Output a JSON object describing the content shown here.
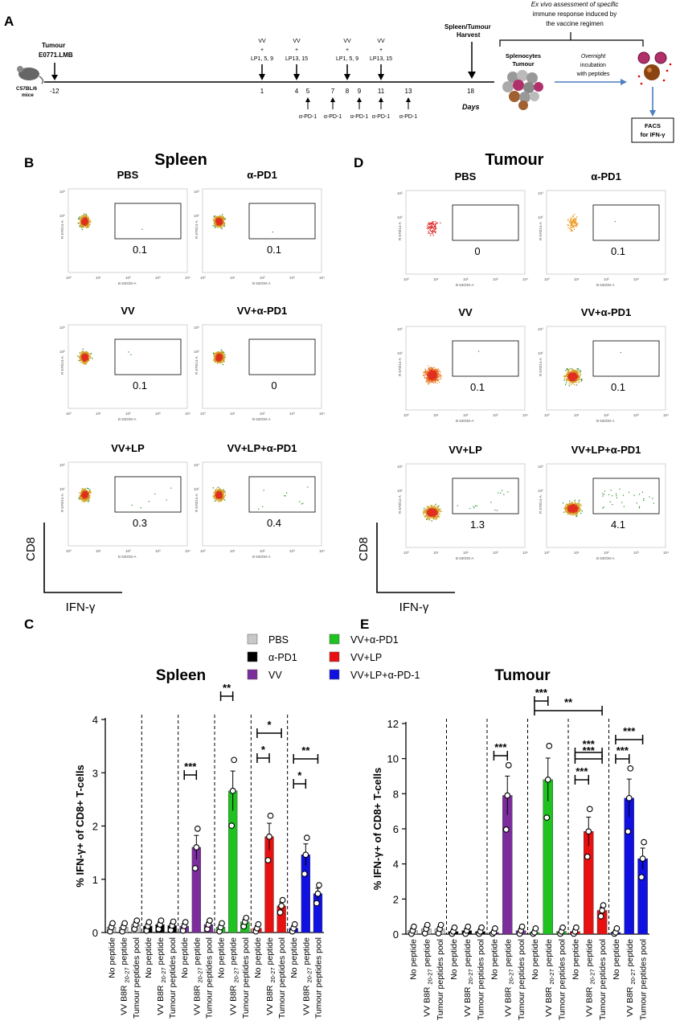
{
  "panels": {
    "A": "A",
    "B": "B",
    "C": "C",
    "D": "D",
    "E": "E"
  },
  "timeline": {
    "tumour": [
      "Tumour",
      "E0771.LMB"
    ],
    "mice": [
      "C57BL/6",
      "mice"
    ],
    "day_start": "-12",
    "vaccinations": [
      {
        "day": "1",
        "text": [
          "VV",
          "+",
          "LP1, 5, 9"
        ]
      },
      {
        "day": "4",
        "text": [
          "VV",
          "+",
          "LP13, 15"
        ]
      },
      {
        "day": "8",
        "text": [
          "VV",
          "+",
          "LP1, 5, 9"
        ]
      },
      {
        "day": "11",
        "text": [
          "VV",
          "+",
          "LP13, 15"
        ]
      }
    ],
    "pd1_days": [
      "5",
      "7",
      "9",
      "11",
      "13"
    ],
    "pd1_label": "α-PD-1",
    "harvest": [
      "Spleen/Tumour",
      "Harvest"
    ],
    "harvest_day": "18",
    "days_label": "Days",
    "cells": [
      "Splenocytes",
      "Tumour"
    ],
    "incubation": [
      "Overnight",
      "incubation",
      "with peptides"
    ],
    "exvivo": [
      "Ex vivo assessment of specific",
      "immune response induced by",
      "the vaccine regimen"
    ],
    "facs": [
      "FACS",
      "for IFN-γ"
    ]
  },
  "flow": {
    "spleen_title": "Spleen",
    "tumour_title": "Tumour",
    "y_axis_label": "CD8",
    "x_axis_label": "IFN-γ",
    "channel_x": "B 530/30-A",
    "channel_y": "R 670/14-A",
    "spleen_plots": [
      {
        "title": "PBS",
        "value": "0.1"
      },
      {
        "title": "α-PD1",
        "value": "0.1"
      },
      {
        "title": "VV",
        "value": "0.1"
      },
      {
        "title": "VV+α-PD1",
        "value": "0"
      },
      {
        "title": "VV+LP",
        "value": "0.3"
      },
      {
        "title": "VV+LP+α-PD1",
        "value": "0.4"
      }
    ],
    "tumour_plots": [
      {
        "title": "PBS",
        "value": "0"
      },
      {
        "title": "α-PD1",
        "value": "0.1"
      },
      {
        "title": "VV",
        "value": "0.1"
      },
      {
        "title": "VV+α-PD1",
        "value": "0.1"
      },
      {
        "title": "VV+LP",
        "value": "1.3"
      },
      {
        "title": "VV+LP+α-PD1",
        "value": "4.1"
      }
    ]
  },
  "legend": [
    {
      "name": "PBS",
      "color": "#c8c8c8"
    },
    {
      "name": "α-PD1",
      "color": "#000000"
    },
    {
      "name": "VV",
      "color": "#7b2d9b"
    },
    {
      "name": "VV+α-PD1",
      "color": "#1fc21f"
    },
    {
      "name": "VV+LP",
      "color": "#e81010"
    },
    {
      "name": "VV+LP+α-PD-1",
      "color": "#1010e0"
    }
  ],
  "chart_data": [
    {
      "type": "bar",
      "title": "Spleen",
      "ylabel": "% IFN-γ+ of CD8+ T-cells",
      "ylim": [
        0,
        4
      ],
      "yticks": [
        "0",
        "1",
        "2",
        "3",
        "4"
      ],
      "categories": [
        "No peptide",
        "VV B8R 20-27 peptide",
        "Tumour peptides pool"
      ],
      "series": [
        {
          "name": "PBS",
          "values": [
            0.1,
            0.1,
            0.15
          ]
        },
        {
          "name": "α-PD1",
          "values": [
            0.12,
            0.15,
            0.13
          ]
        },
        {
          "name": "VV",
          "values": [
            0.12,
            1.6,
            0.15
          ]
        },
        {
          "name": "VV+α-PD1",
          "values": [
            0.1,
            2.66,
            0.2
          ]
        },
        {
          "name": "VV+LP",
          "values": [
            0.08,
            1.8,
            0.5
          ]
        },
        {
          "name": "VV+LP+α-PD-1",
          "values": [
            0.08,
            1.46,
            0.73
          ]
        }
      ],
      "significance": [
        "***",
        "**",
        "*",
        "*",
        "*",
        "**"
      ]
    },
    {
      "type": "bar",
      "title": "Tumour",
      "ylabel": "% IFN-γ+ of CD8+ T-cells",
      "ylim": [
        0,
        12
      ],
      "yticks": [
        "0",
        "2",
        "4",
        "6",
        "8",
        "10",
        "12"
      ],
      "categories": [
        "No peptide",
        "VV B8R 20-27 peptide",
        "Tumour peptides pool"
      ],
      "series": [
        {
          "name": "PBS",
          "values": [
            0.2,
            0.3,
            0.3
          ]
        },
        {
          "name": "α-PD1",
          "values": [
            0.15,
            0.2,
            0.15
          ]
        },
        {
          "name": "VV",
          "values": [
            0.1,
            7.9,
            0.2
          ]
        },
        {
          "name": "VV+α-PD1",
          "values": [
            0.1,
            8.8,
            0.15
          ]
        },
        {
          "name": "VV+LP",
          "values": [
            0.15,
            5.85,
            1.35
          ]
        },
        {
          "name": "VV+LP+α-PD-1",
          "values": [
            0.1,
            7.75,
            4.3
          ]
        }
      ],
      "significance": [
        "***",
        "***",
        "***",
        "***",
        "***",
        "***",
        "***",
        "**"
      ]
    }
  ],
  "tick_parts": {
    "no": "No peptide",
    "vv_a": "VV B8R",
    "vv_sub": "20-27",
    "vv_b": "peptide",
    "pool": "Tumour peptides pool"
  }
}
